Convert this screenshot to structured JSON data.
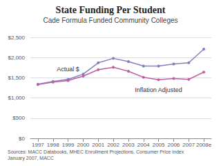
{
  "chart_data": {
    "type": "line",
    "title": "State Funding Per Student",
    "subtitle": "Cade Formula Funded Community Colleges",
    "source": "Sources: MACC Databooks, MHEC Enrollment Projections, Consumer Price Index\nJanuary 2007, MACC",
    "categories": [
      "1997",
      "1998",
      "1999",
      "2000",
      "2001",
      "2002",
      "2003",
      "2004",
      "2005",
      "2006",
      "2007",
      "2008e"
    ],
    "series": [
      {
        "name": "Actual $",
        "color": "#8080c0",
        "marker": "circle",
        "values": [
          1340,
          1410,
          1460,
          1590,
          1870,
          1980,
          1900,
          1790,
          1790,
          1840,
          1870,
          2210
        ]
      },
      {
        "name": "Inflation Adjusted",
        "color": "#c060a0",
        "marker": "circle",
        "values": [
          1330,
          1390,
          1430,
          1540,
          1700,
          1760,
          1660,
          1510,
          1450,
          1480,
          1460,
          1640
        ]
      }
    ],
    "ylim": [
      0,
      2500
    ],
    "yticks": [
      {
        "value": 0,
        "label": "$0"
      },
      {
        "value": 500,
        "label": "$500"
      },
      {
        "value": 1000,
        "label": "$1,000"
      },
      {
        "value": 1500,
        "label": "$1,500"
      },
      {
        "value": 2000,
        "label": "$2,000"
      },
      {
        "value": 2500,
        "label": "$2,500"
      }
    ],
    "grid": true
  }
}
